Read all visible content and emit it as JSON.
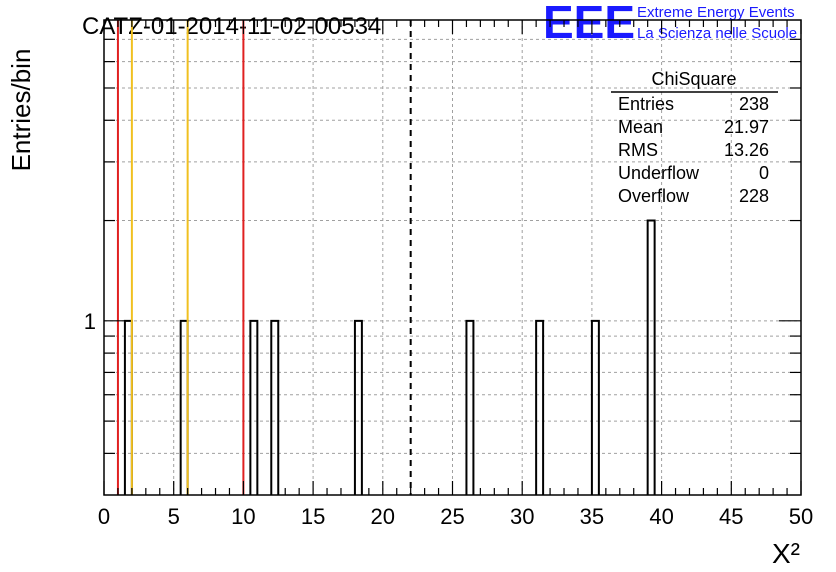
{
  "title": "CATZ-01-2014-11-02-00534",
  "logo": {
    "text": "EEE",
    "line1": "Extreme Energy Events",
    "line2": "La Scienza nelle Scuole",
    "color": "#1a1aff"
  },
  "chart_data": {
    "type": "bar",
    "title": "CATZ-01-2014-11-02-00534",
    "xlabel": "X²",
    "ylabel": "Entries/bin",
    "xlim": [
      0,
      50
    ],
    "ylog": true,
    "ylim": [
      0.3,
      8
    ],
    "x_ticks": [
      "0",
      "5",
      "10",
      "15",
      "20",
      "25",
      "30",
      "35",
      "40",
      "45",
      "50"
    ],
    "y_tick_labels": [
      {
        "value": 1,
        "label": "1"
      }
    ],
    "bin_width": 0.5,
    "bins": [
      {
        "x": 1.5,
        "count": 1
      },
      {
        "x": 5.5,
        "count": 1
      },
      {
        "x": 10.5,
        "count": 1
      },
      {
        "x": 12.0,
        "count": 1
      },
      {
        "x": 18.0,
        "count": 1
      },
      {
        "x": 26.0,
        "count": 1
      },
      {
        "x": 31.0,
        "count": 1
      },
      {
        "x": 35.0,
        "count": 1
      },
      {
        "x": 39.0,
        "count": 2
      }
    ],
    "vertical_lines": [
      {
        "x": 1.0,
        "color": "#e02020",
        "style": "solid"
      },
      {
        "x": 2.0,
        "color": "#f0c020",
        "style": "solid"
      },
      {
        "x": 6.0,
        "color": "#f0c020",
        "style": "solid"
      },
      {
        "x": 10.0,
        "color": "#e02020",
        "style": "solid"
      },
      {
        "x": 22.0,
        "color": "#000000",
        "style": "dashed"
      }
    ],
    "grid": true,
    "legend": "top-right",
    "stats": {
      "name": "ChiSquare",
      "rows": [
        {
          "label": "Entries",
          "value": "238"
        },
        {
          "label": "Mean",
          "value": "21.97"
        },
        {
          "label": "RMS",
          "value": "13.26"
        },
        {
          "label": "Underflow",
          "value": "0"
        },
        {
          "label": "Overflow",
          "value": "228"
        }
      ]
    }
  }
}
